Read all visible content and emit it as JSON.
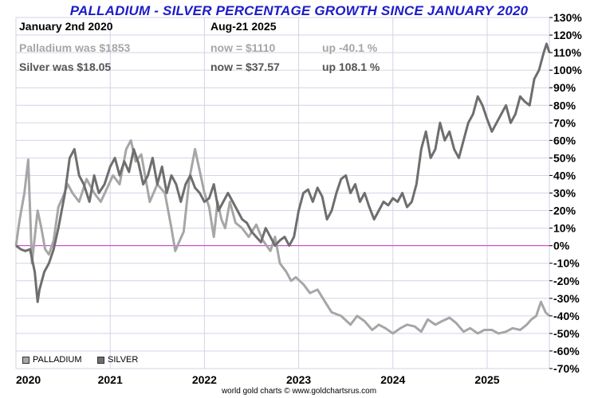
{
  "chart_data": {
    "type": "line",
    "title": "PALLADIUM - SILVER PERCENTAGE GROWTH SINCE JANUARY 2020",
    "x_tick_labels": [
      "2020",
      "2021",
      "2022",
      "2023",
      "2024",
      "2025"
    ],
    "y_tick_labels": [
      "130%",
      "120%",
      "110%",
      "100%",
      "90%",
      "80%",
      "70%",
      "60%",
      "50%",
      "40%",
      "30%",
      "20%",
      "10%",
      "0%",
      "-10%",
      "-20%",
      "-30%",
      "-40%",
      "-50%",
      "-60%",
      "-70%"
    ],
    "xlim": [
      2020.0,
      2025.66
    ],
    "ylim": [
      -70,
      130
    ],
    "grid": true,
    "y_axis_side": "right",
    "zero_line_color": "#cc33cc",
    "legend_position": "bottom-left",
    "series": [
      {
        "name": "PALLADIUM",
        "color": "#a6a6a6",
        "x": [
          2020.0,
          2020.04,
          2020.09,
          2020.13,
          2020.17,
          2020.2,
          2020.23,
          2020.27,
          2020.31,
          2020.35,
          2020.4,
          2020.45,
          2020.5,
          2020.55,
          2020.6,
          2020.67,
          2020.75,
          2020.83,
          2020.9,
          2020.96,
          2021.03,
          2021.1,
          2021.17,
          2021.22,
          2021.27,
          2021.33,
          2021.37,
          2021.42,
          2021.5,
          2021.58,
          2021.65,
          2021.69,
          2021.73,
          2021.78,
          2021.84,
          2021.9,
          2021.96,
          2022.0,
          2022.05,
          2022.1,
          2022.14,
          2022.18,
          2022.22,
          2022.27,
          2022.33,
          2022.4,
          2022.47,
          2022.55,
          2022.62,
          2022.7,
          2022.75,
          2022.8,
          2022.87,
          2022.92,
          2022.97,
          2023.05,
          2023.12,
          2023.2,
          2023.28,
          2023.35,
          2023.45,
          2023.55,
          2023.62,
          2023.7,
          2023.78,
          2023.85,
          2023.92,
          2024.0,
          2024.08,
          2024.15,
          2024.23,
          2024.3,
          2024.37,
          2024.45,
          2024.52,
          2024.6,
          2024.67,
          2024.75,
          2024.82,
          2024.9,
          2024.97,
          2025.05,
          2025.12,
          2025.2,
          2025.27,
          2025.35,
          2025.42,
          2025.47,
          2025.52,
          2025.57,
          2025.62,
          2025.66
        ],
        "values": [
          0,
          15,
          30,
          49,
          -10,
          5,
          20,
          10,
          -2,
          -5,
          3,
          22,
          28,
          35,
          30,
          25,
          38,
          30,
          25,
          32,
          40,
          35,
          55,
          60,
          48,
          52,
          40,
          25,
          35,
          30,
          10,
          -3,
          2,
          8,
          38,
          55,
          40,
          30,
          22,
          5,
          25,
          15,
          10,
          25,
          13,
          10,
          5,
          12,
          3,
          -3,
          5,
          -10,
          -15,
          -20,
          -18,
          -22,
          -27,
          -25,
          -32,
          -38,
          -40,
          -45,
          -40,
          -43,
          -48,
          -45,
          -47,
          -50,
          -47,
          -45,
          -46,
          -49,
          -42,
          -45,
          -43,
          -41,
          -44,
          -49,
          -47,
          -50,
          -48,
          -48,
          -50,
          -49,
          -47,
          -48,
          -45,
          -42,
          -40,
          -32,
          -38,
          -40
        ]
      },
      {
        "name": "SILVER",
        "color": "#6e6e6e",
        "x": [
          2020.0,
          2020.05,
          2020.1,
          2020.15,
          2020.2,
          2020.23,
          2020.25,
          2020.3,
          2020.35,
          2020.4,
          2020.45,
          2020.52,
          2020.57,
          2020.62,
          2020.67,
          2020.72,
          2020.78,
          2020.83,
          2020.88,
          2020.94,
          2021.0,
          2021.05,
          2021.1,
          2021.15,
          2021.2,
          2021.25,
          2021.3,
          2021.35,
          2021.4,
          2021.45,
          2021.5,
          2021.55,
          2021.6,
          2021.65,
          2021.7,
          2021.75,
          2021.8,
          2021.85,
          2021.9,
          2021.95,
          2022.0,
          2022.05,
          2022.1,
          2022.15,
          2022.2,
          2022.25,
          2022.3,
          2022.35,
          2022.4,
          2022.45,
          2022.5,
          2022.55,
          2022.6,
          2022.65,
          2022.7,
          2022.75,
          2022.8,
          2022.85,
          2022.9,
          2022.95,
          2023.0,
          2023.05,
          2023.1,
          2023.15,
          2023.2,
          2023.25,
          2023.3,
          2023.35,
          2023.4,
          2023.45,
          2023.5,
          2023.55,
          2023.6,
          2023.65,
          2023.7,
          2023.75,
          2023.8,
          2023.85,
          2023.9,
          2023.95,
          2024.0,
          2024.05,
          2024.1,
          2024.15,
          2024.2,
          2024.25,
          2024.3,
          2024.35,
          2024.4,
          2024.45,
          2024.5,
          2024.55,
          2024.6,
          2024.65,
          2024.7,
          2024.75,
          2024.8,
          2024.85,
          2024.9,
          2024.95,
          2025.0,
          2025.05,
          2025.1,
          2025.15,
          2025.2,
          2025.25,
          2025.3,
          2025.35,
          2025.4,
          2025.45,
          2025.5,
          2025.55,
          2025.6,
          2025.63,
          2025.66
        ],
        "values": [
          0,
          -2,
          -3,
          -2,
          -15,
          -32,
          -25,
          -15,
          -10,
          -2,
          10,
          30,
          50,
          55,
          40,
          35,
          25,
          40,
          30,
          35,
          45,
          50,
          40,
          48,
          42,
          55,
          47,
          35,
          40,
          50,
          35,
          45,
          30,
          40,
          35,
          25,
          35,
          40,
          33,
          30,
          25,
          27,
          35,
          20,
          25,
          30,
          25,
          20,
          15,
          13,
          8,
          5,
          2,
          10,
          5,
          0,
          3,
          5,
          0,
          5,
          20,
          30,
          32,
          25,
          33,
          28,
          15,
          20,
          30,
          38,
          40,
          30,
          35,
          25,
          30,
          22,
          15,
          20,
          25,
          23,
          27,
          25,
          30,
          22,
          25,
          35,
          55,
          65,
          50,
          55,
          70,
          60,
          65,
          55,
          50,
          60,
          70,
          75,
          85,
          80,
          72,
          65,
          70,
          75,
          80,
          70,
          75,
          85,
          82,
          80,
          95,
          100,
          110,
          115,
          110
        ]
      }
    ],
    "annotations": {
      "header_col1": "January 2nd 2020",
      "header_col2": "Aug-21  2025",
      "palladium_was": "Palladium was $1853",
      "palladium_now": "now = $1110",
      "palladium_change": "up -40.1 %",
      "silver_was": "Silver was $18.05",
      "silver_now": "now = $37.57",
      "silver_change": "up 108.1 %"
    },
    "legend": [
      "PALLADIUM",
      "SILVER"
    ]
  },
  "footer": "world gold charts © www.goldchartsrus.com"
}
